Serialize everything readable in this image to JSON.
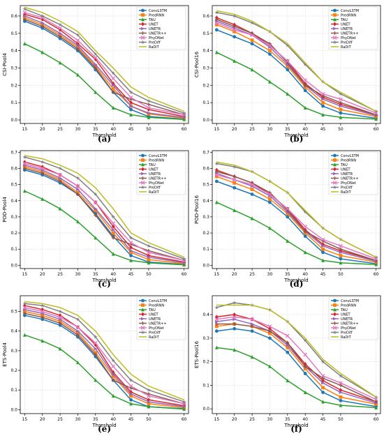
{
  "series_style": [
    {
      "name": "ConvLSTM",
      "color": "#1f77b4",
      "marker": "circle"
    },
    {
      "name": "PredRNN",
      "color": "#ff7f0e",
      "marker": "square"
    },
    {
      "name": "TAU",
      "color": "#2ca02c",
      "marker": "triangle-up"
    },
    {
      "name": "UNET",
      "color": "#d62728",
      "marker": "diamond"
    },
    {
      "name": "UNETR",
      "color": "#9467bd",
      "marker": "triangle-right"
    },
    {
      "name": "UNETR++",
      "color": "#8c564b",
      "marker": "plus"
    },
    {
      "name": "PhyDNet",
      "color": "#e377c2",
      "marker": "x"
    },
    {
      "name": "PreDiff",
      "color": "#7f7f7f",
      "marker": "star"
    },
    {
      "name": "RaDiT",
      "color": "#bcbd22",
      "marker": "none"
    }
  ],
  "chart_data": [
    {
      "type": "line",
      "caption": "(a)",
      "xlabel": "Threshold",
      "ylabel": "CSI-Pool4",
      "x": [
        15,
        20,
        25,
        30,
        35,
        40,
        45,
        50,
        60
      ],
      "ylim": [
        -0.02,
        0.66
      ],
      "yticks": [
        0.0,
        0.1,
        0.2,
        0.3,
        0.4,
        0.5,
        0.6
      ],
      "grid": true,
      "legend": "top-right",
      "series": [
        {
          "name": "ConvLSTM",
          "values": [
            0.57,
            0.53,
            0.47,
            0.4,
            0.29,
            0.16,
            0.06,
            0.02,
            0.005
          ]
        },
        {
          "name": "PredRNN",
          "values": [
            0.59,
            0.55,
            0.49,
            0.42,
            0.31,
            0.18,
            0.08,
            0.035,
            0.01
          ]
        },
        {
          "name": "TAU",
          "values": [
            0.44,
            0.39,
            0.33,
            0.26,
            0.16,
            0.07,
            0.03,
            0.015,
            0.003
          ]
        },
        {
          "name": "UNET",
          "values": [
            0.61,
            0.58,
            0.52,
            0.44,
            0.35,
            0.21,
            0.1,
            0.06,
            0.02
          ]
        },
        {
          "name": "UNETR",
          "values": [
            0.6,
            0.56,
            0.5,
            0.43,
            0.32,
            0.2,
            0.08,
            0.04,
            0.015
          ]
        },
        {
          "name": "UNETR++",
          "values": [
            0.58,
            0.54,
            0.48,
            0.41,
            0.3,
            0.16,
            0.12,
            0.09,
            0.03
          ]
        },
        {
          "name": "PhyDNet",
          "values": [
            0.62,
            0.59,
            0.53,
            0.46,
            0.36,
            0.24,
            0.13,
            0.07,
            0.03
          ]
        },
        {
          "name": "PreDiff",
          "values": [
            0.64,
            0.6,
            0.55,
            0.49,
            0.38,
            0.27,
            0.16,
            0.11,
            0.04
          ]
        },
        {
          "name": "RaDiT",
          "values": [
            0.65,
            0.62,
            0.57,
            0.51,
            0.4,
            0.3,
            0.19,
            0.13,
            0.05
          ]
        }
      ]
    },
    {
      "type": "line",
      "caption": "(b)",
      "xlabel": "Threshold",
      "ylabel": "CSI-Pool16",
      "x": [
        15,
        20,
        25,
        30,
        35,
        40,
        45,
        50,
        60
      ],
      "ylim": [
        -0.02,
        0.66
      ],
      "yticks": [
        0.0,
        0.1,
        0.2,
        0.3,
        0.4,
        0.5,
        0.6
      ],
      "grid": true,
      "legend": "top-right",
      "series": [
        {
          "name": "ConvLSTM",
          "values": [
            0.52,
            0.48,
            0.44,
            0.38,
            0.29,
            0.17,
            0.08,
            0.04,
            0.01
          ]
        },
        {
          "name": "PredRNN",
          "values": [
            0.55,
            0.51,
            0.46,
            0.4,
            0.31,
            0.19,
            0.1,
            0.06,
            0.02
          ]
        },
        {
          "name": "TAU",
          "values": [
            0.39,
            0.34,
            0.29,
            0.22,
            0.15,
            0.07,
            0.03,
            0.015,
            0.005
          ]
        },
        {
          "name": "UNET",
          "values": [
            0.59,
            0.55,
            0.5,
            0.43,
            0.34,
            0.21,
            0.13,
            0.09,
            0.03
          ]
        },
        {
          "name": "UNETR",
          "values": [
            0.57,
            0.53,
            0.49,
            0.42,
            0.32,
            0.2,
            0.12,
            0.08,
            0.025
          ]
        },
        {
          "name": "UNETR++",
          "values": [
            0.58,
            0.54,
            0.5,
            0.44,
            0.33,
            0.2,
            0.14,
            0.1,
            0.03
          ]
        },
        {
          "name": "PhyDNet",
          "values": [
            0.56,
            0.52,
            0.49,
            0.43,
            0.34,
            0.23,
            0.15,
            0.12,
            0.04
          ]
        },
        {
          "name": "PreDiff",
          "values": [
            0.62,
            0.6,
            0.56,
            0.51,
            0.43,
            0.32,
            0.22,
            0.15,
            0.05
          ]
        },
        {
          "name": "RaDiT",
          "values": [
            0.63,
            0.61,
            0.57,
            0.51,
            0.44,
            0.33,
            0.22,
            0.16,
            0.05
          ]
        }
      ]
    },
    {
      "type": "line",
      "caption": "(c)",
      "xlabel": "Threshold",
      "ylabel": "POD-Pool4",
      "x": [
        15,
        20,
        25,
        30,
        35,
        40,
        45,
        50,
        60
      ],
      "ylim": [
        -0.02,
        0.71
      ],
      "yticks": [
        0.0,
        0.1,
        0.2,
        0.3,
        0.4,
        0.5,
        0.6,
        0.7
      ],
      "grid": true,
      "legend": "top-right",
      "series": [
        {
          "name": "ConvLSTM",
          "values": [
            0.59,
            0.56,
            0.51,
            0.44,
            0.32,
            0.18,
            0.06,
            0.02,
            0.005
          ]
        },
        {
          "name": "PredRNN",
          "values": [
            0.61,
            0.58,
            0.53,
            0.45,
            0.34,
            0.2,
            0.08,
            0.035,
            0.01
          ]
        },
        {
          "name": "TAU",
          "values": [
            0.46,
            0.41,
            0.35,
            0.27,
            0.17,
            0.07,
            0.03,
            0.015,
            0.003
          ]
        },
        {
          "name": "UNET",
          "values": [
            0.64,
            0.61,
            0.56,
            0.49,
            0.39,
            0.24,
            0.11,
            0.06,
            0.02
          ]
        },
        {
          "name": "UNETR",
          "values": [
            0.62,
            0.59,
            0.54,
            0.47,
            0.35,
            0.22,
            0.09,
            0.05,
            0.015
          ]
        },
        {
          "name": "UNETR++",
          "values": [
            0.6,
            0.57,
            0.52,
            0.44,
            0.31,
            0.17,
            0.13,
            0.09,
            0.03
          ]
        },
        {
          "name": "PhyDNet",
          "values": [
            0.63,
            0.6,
            0.56,
            0.49,
            0.39,
            0.26,
            0.14,
            0.08,
            0.03
          ]
        },
        {
          "name": "PreDiff",
          "values": [
            0.67,
            0.64,
            0.6,
            0.54,
            0.44,
            0.3,
            0.17,
            0.12,
            0.04
          ]
        },
        {
          "name": "RaDiT",
          "values": [
            0.68,
            0.66,
            0.62,
            0.57,
            0.48,
            0.35,
            0.2,
            0.14,
            0.05
          ]
        }
      ]
    },
    {
      "type": "line",
      "caption": "(d)",
      "xlabel": "Threshold",
      "ylabel": "POD-Pool16",
      "x": [
        15,
        20,
        25,
        30,
        35,
        40,
        45,
        50,
        60
      ],
      "ylim": [
        -0.02,
        0.71
      ],
      "yticks": [
        0.0,
        0.1,
        0.2,
        0.3,
        0.4,
        0.5,
        0.6,
        0.7
      ],
      "grid": true,
      "legend": "top-right",
      "series": [
        {
          "name": "ConvLSTM",
          "values": [
            0.52,
            0.48,
            0.44,
            0.39,
            0.3,
            0.18,
            0.08,
            0.04,
            0.01
          ]
        },
        {
          "name": "PredRNN",
          "values": [
            0.55,
            0.51,
            0.47,
            0.41,
            0.32,
            0.2,
            0.1,
            0.06,
            0.02
          ]
        },
        {
          "name": "TAU",
          "values": [
            0.39,
            0.34,
            0.29,
            0.23,
            0.15,
            0.08,
            0.03,
            0.015,
            0.005
          ]
        },
        {
          "name": "UNET",
          "values": [
            0.59,
            0.55,
            0.51,
            0.44,
            0.35,
            0.22,
            0.13,
            0.09,
            0.03
          ]
        },
        {
          "name": "UNETR",
          "values": [
            0.57,
            0.53,
            0.49,
            0.43,
            0.33,
            0.21,
            0.12,
            0.08,
            0.025
          ]
        },
        {
          "name": "UNETR++",
          "values": [
            0.58,
            0.55,
            0.51,
            0.45,
            0.34,
            0.21,
            0.15,
            0.1,
            0.03
          ]
        },
        {
          "name": "PhyDNet",
          "values": [
            0.56,
            0.53,
            0.5,
            0.44,
            0.35,
            0.24,
            0.16,
            0.12,
            0.04
          ]
        },
        {
          "name": "PreDiff",
          "values": [
            0.63,
            0.61,
            0.58,
            0.52,
            0.45,
            0.33,
            0.23,
            0.16,
            0.05
          ]
        },
        {
          "name": "RaDiT",
          "values": [
            0.64,
            0.62,
            0.58,
            0.52,
            0.45,
            0.34,
            0.23,
            0.16,
            0.05
          ]
        }
      ]
    },
    {
      "type": "line",
      "caption": "(e)",
      "xlabel": "Threshold",
      "ylabel": "ETS-Pool4",
      "x": [
        15,
        20,
        25,
        30,
        35,
        40,
        45,
        50,
        60
      ],
      "ylim": [
        -0.02,
        0.58
      ],
      "yticks": [
        0.0,
        0.1,
        0.2,
        0.3,
        0.4,
        0.5
      ],
      "grid": true,
      "legend": "top-right",
      "series": [
        {
          "name": "ConvLSTM",
          "values": [
            0.48,
            0.46,
            0.43,
            0.37,
            0.27,
            0.15,
            0.05,
            0.015,
            0.005
          ]
        },
        {
          "name": "PredRNN",
          "values": [
            0.5,
            0.48,
            0.45,
            0.39,
            0.29,
            0.17,
            0.07,
            0.03,
            0.01
          ]
        },
        {
          "name": "TAU",
          "values": [
            0.38,
            0.35,
            0.31,
            0.24,
            0.15,
            0.07,
            0.03,
            0.015,
            0.003
          ]
        },
        {
          "name": "UNET",
          "values": [
            0.53,
            0.51,
            0.48,
            0.42,
            0.33,
            0.19,
            0.09,
            0.05,
            0.02
          ]
        },
        {
          "name": "UNETR",
          "values": [
            0.51,
            0.49,
            0.46,
            0.4,
            0.31,
            0.18,
            0.08,
            0.04,
            0.015
          ]
        },
        {
          "name": "UNETR++",
          "values": [
            0.49,
            0.47,
            0.44,
            0.38,
            0.28,
            0.15,
            0.11,
            0.08,
            0.03
          ]
        },
        {
          "name": "PhyDNet",
          "values": [
            0.52,
            0.5,
            0.47,
            0.42,
            0.34,
            0.22,
            0.12,
            0.07,
            0.03
          ]
        },
        {
          "name": "PreDiff",
          "values": [
            0.54,
            0.53,
            0.5,
            0.46,
            0.37,
            0.25,
            0.15,
            0.1,
            0.04
          ]
        },
        {
          "name": "RaDiT",
          "values": [
            0.55,
            0.54,
            0.52,
            0.48,
            0.4,
            0.28,
            0.18,
            0.12,
            0.05
          ]
        }
      ]
    },
    {
      "type": "line",
      "caption": "(f)",
      "xlabel": "Threshold",
      "ylabel": "ETS-Pool16",
      "x": [
        15,
        20,
        25,
        30,
        35,
        40,
        45,
        50,
        60
      ],
      "ylim": [
        -0.02,
        0.48
      ],
      "yticks": [
        0.0,
        0.1,
        0.2,
        0.3,
        0.4
      ],
      "grid": true,
      "legend": "top-right",
      "series": [
        {
          "name": "ConvLSTM",
          "values": [
            0.33,
            0.34,
            0.33,
            0.3,
            0.24,
            0.15,
            0.07,
            0.035,
            0.01
          ]
        },
        {
          "name": "PredRNN",
          "values": [
            0.35,
            0.36,
            0.35,
            0.32,
            0.26,
            0.17,
            0.09,
            0.05,
            0.02
          ]
        },
        {
          "name": "TAU",
          "values": [
            0.26,
            0.25,
            0.22,
            0.18,
            0.12,
            0.07,
            0.03,
            0.015,
            0.005
          ]
        },
        {
          "name": "UNET",
          "values": [
            0.39,
            0.4,
            0.38,
            0.34,
            0.28,
            0.19,
            0.12,
            0.08,
            0.03
          ]
        },
        {
          "name": "UNETR",
          "values": [
            0.37,
            0.38,
            0.36,
            0.33,
            0.27,
            0.18,
            0.11,
            0.07,
            0.025
          ]
        },
        {
          "name": "UNETR++",
          "values": [
            0.36,
            0.36,
            0.35,
            0.33,
            0.28,
            0.18,
            0.13,
            0.1,
            0.03
          ]
        },
        {
          "name": "PhyDNet",
          "values": [
            0.38,
            0.39,
            0.38,
            0.35,
            0.31,
            0.23,
            0.14,
            0.11,
            0.04
          ]
        },
        {
          "name": "PreDiff",
          "values": [
            0.43,
            0.45,
            0.44,
            0.42,
            0.37,
            0.29,
            0.2,
            0.14,
            0.05
          ]
        },
        {
          "name": "RaDiT",
          "values": [
            0.44,
            0.44,
            0.44,
            0.42,
            0.37,
            0.3,
            0.21,
            0.15,
            0.05
          ]
        }
      ]
    }
  ]
}
